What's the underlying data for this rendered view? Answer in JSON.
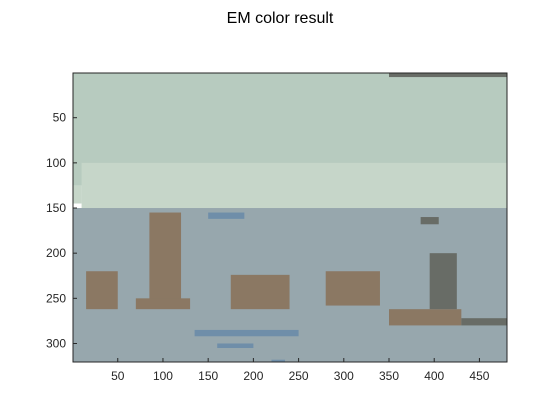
{
  "title": "EM color result",
  "chart_data": {
    "type": "heatmap",
    "title": "EM color result",
    "xlabel": "",
    "ylabel": "",
    "xlim": [
      0.5,
      480.5
    ],
    "ylim": [
      0.5,
      320.5
    ],
    "y_reversed": true,
    "x_ticks": [
      50,
      100,
      150,
      200,
      250,
      300,
      350,
      400,
      450
    ],
    "y_ticks": [
      50,
      100,
      150,
      200,
      250,
      300
    ],
    "grid": false,
    "legend": "none",
    "clusters": [
      {
        "id": "sky",
        "color": "#b7cbbf"
      },
      {
        "id": "haze",
        "color": "#c6d6c9"
      },
      {
        "id": "ground",
        "color": "#97a7ad"
      },
      {
        "id": "animal",
        "color": "#8b7863"
      },
      {
        "id": "water",
        "color": "#6f8ea9"
      },
      {
        "id": "dark",
        "color": "#686c66"
      }
    ],
    "regions": [
      {
        "cluster": "sky",
        "x": [
          0.5,
          480.5
        ],
        "y": [
          0.5,
          125
        ]
      },
      {
        "cluster": "haze",
        "x": [
          0.5,
          10
        ],
        "y": [
          125,
          145
        ]
      },
      {
        "cluster": "haze",
        "x": [
          10,
          480.5
        ],
        "y": [
          100,
          150
        ]
      },
      {
        "cluster": "ground",
        "x": [
          0.5,
          480.5
        ],
        "y": [
          150,
          320.5
        ]
      },
      {
        "cluster": "dark",
        "x": [
          350,
          480.5
        ],
        "y": [
          0.5,
          5
        ]
      },
      {
        "cluster": "animal",
        "x": [
          15,
          50
        ],
        "y": [
          220,
          262
        ]
      },
      {
        "cluster": "animal",
        "x": [
          85,
          120
        ],
        "y": [
          155,
          258
        ]
      },
      {
        "cluster": "animal",
        "x": [
          70,
          130
        ],
        "y": [
          250,
          262
        ]
      },
      {
        "cluster": "animal",
        "x": [
          175,
          240
        ],
        "y": [
          224,
          262
        ]
      },
      {
        "cluster": "animal",
        "x": [
          280,
          340
        ],
        "y": [
          220,
          258
        ]
      },
      {
        "cluster": "animal",
        "x": [
          350,
          430
        ],
        "y": [
          262,
          280
        ]
      },
      {
        "cluster": "dark",
        "x": [
          395,
          425
        ],
        "y": [
          200,
          262
        ]
      },
      {
        "cluster": "dark",
        "x": [
          385,
          405
        ],
        "y": [
          160,
          168
        ]
      },
      {
        "cluster": "dark",
        "x": [
          430,
          480.5
        ],
        "y": [
          272,
          280
        ]
      },
      {
        "cluster": "water",
        "x": [
          135,
          250
        ],
        "y": [
          285,
          292
        ]
      },
      {
        "cluster": "water",
        "x": [
          160,
          200
        ],
        "y": [
          300,
          305
        ]
      },
      {
        "cluster": "water",
        "x": [
          150,
          190
        ],
        "y": [
          155,
          162
        ]
      },
      {
        "cluster": "water",
        "x": [
          220,
          235
        ],
        "y": [
          318,
          320.5
        ]
      }
    ]
  }
}
